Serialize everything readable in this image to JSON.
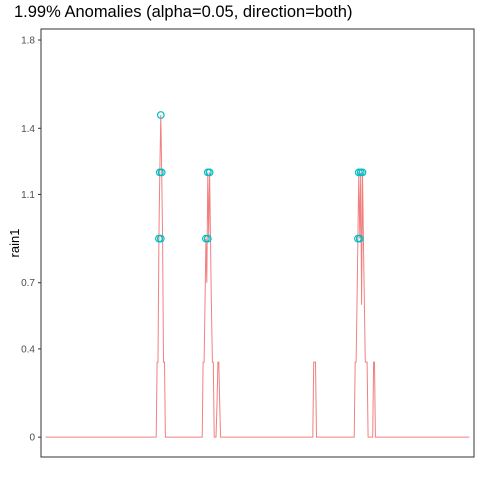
{
  "chart_data": {
    "type": "line",
    "title": "1.99% Anomalies (alpha=0.05, direction=both)",
    "xlabel": "",
    "ylabel": "rain1",
    "ylim": [
      -0.09,
      1.85
    ],
    "y_ticks": [
      0,
      0.4,
      0.7,
      1.1,
      1.4,
      1.8
    ],
    "y_tick_labels": [
      "0",
      "0.4",
      "0.7",
      "1.1",
      "1.4",
      "1.8"
    ],
    "x_ticks": [],
    "grid": false,
    "colors": {
      "line": "#f08080",
      "anomaly": "#00bfc4"
    },
    "series": [
      {
        "values": [
          [
            0,
            0
          ],
          [
            120,
            0
          ],
          [
            121,
            0.34
          ],
          [
            122,
            0.34
          ],
          [
            123,
            0.9
          ],
          [
            124,
            1.2
          ],
          [
            125,
            1.46
          ],
          [
            126,
            1.2
          ],
          [
            127,
            0.9
          ],
          [
            128,
            0.34
          ],
          [
            129,
            0.34
          ],
          [
            130,
            0
          ],
          [
            170,
            0
          ],
          [
            171,
            0.34
          ],
          [
            172,
            0.34
          ],
          [
            173,
            0.6
          ],
          [
            174,
            0.9
          ],
          [
            175,
            0.7
          ],
          [
            176,
            1.2
          ],
          [
            177,
            0.9
          ],
          [
            178,
            1.2
          ],
          [
            179,
            0.9
          ],
          [
            180,
            0.6
          ],
          [
            181,
            0.34
          ],
          [
            182,
            0.34
          ],
          [
            183,
            0
          ],
          [
            185,
            0
          ],
          [
            186,
            0.15
          ],
          [
            187,
            0.34
          ],
          [
            188,
            0.34
          ],
          [
            189,
            0.15
          ],
          [
            190,
            0
          ],
          [
            290,
            0
          ],
          [
            291,
            0.34
          ],
          [
            292,
            0.34
          ],
          [
            293,
            0.34
          ],
          [
            294,
            0
          ],
          [
            335,
            0
          ],
          [
            336,
            0.34
          ],
          [
            337,
            0.34
          ],
          [
            338,
            0.6
          ],
          [
            339,
            0.9
          ],
          [
            340,
            1.2
          ],
          [
            341,
            0.9
          ],
          [
            342,
            1.2
          ],
          [
            343,
            0.6
          ],
          [
            344,
            1.2
          ],
          [
            345,
            0.9
          ],
          [
            346,
            0.6
          ],
          [
            347,
            0.34
          ],
          [
            348,
            0.34
          ],
          [
            349,
            0.34
          ],
          [
            350,
            0
          ],
          [
            355,
            0
          ],
          [
            356,
            0.34
          ],
          [
            357,
            0.34
          ],
          [
            358,
            0
          ],
          [
            460,
            0
          ]
        ]
      }
    ],
    "anomalies": [
      [
        123,
        0.9
      ],
      [
        125,
        0.9
      ],
      [
        124,
        1.2
      ],
      [
        126,
        1.2
      ],
      [
        125,
        1.46
      ],
      [
        174,
        0.9
      ],
      [
        176,
        0.9
      ],
      [
        176,
        1.2
      ],
      [
        178,
        1.2
      ],
      [
        339,
        0.9
      ],
      [
        341,
        0.9
      ],
      [
        340,
        1.2
      ],
      [
        342,
        1.2
      ],
      [
        344,
        1.2
      ]
    ],
    "xlim": [
      -5,
      465
    ]
  }
}
